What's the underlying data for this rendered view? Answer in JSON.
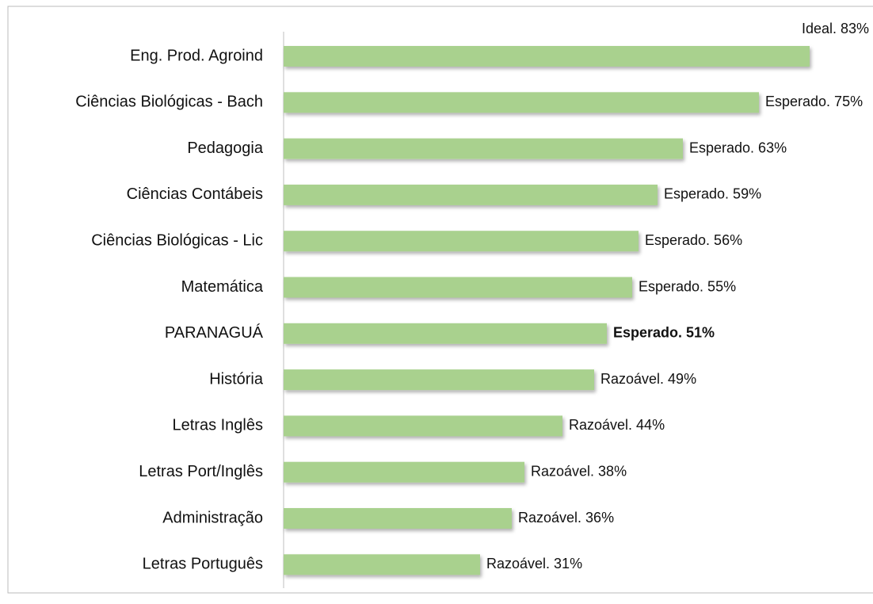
{
  "chart_data": {
    "type": "bar",
    "orientation": "horizontal",
    "categories": [
      "Eng. Prod. Agroind",
      "Ciências Biológicas - Bach",
      "Pedagogia",
      "Ciências Contábeis",
      "Ciências Biológicas - Lic",
      "Matemática",
      "PARANAGUÁ",
      "História",
      "Letras Inglês",
      "Letras Port/Inglês",
      "Administração",
      "Letras Português"
    ],
    "values": [
      83,
      75,
      63,
      59,
      56,
      55,
      51,
      49,
      44,
      38,
      36,
      31
    ],
    "value_labels": [
      "Ideal. 83%",
      "Esperado. 75%",
      "Esperado. 63%",
      "Esperado. 59%",
      "Esperado. 56%",
      "Esperado. 55%",
      "Esperado. 51%",
      "Razoável. 49%",
      "Razoável. 44%",
      "Razoável. 38%",
      "Razoável. 36%",
      "Razoável. 31%"
    ],
    "highlight_category": "PARANAGUÁ",
    "color": "#a9d18e",
    "xlim": [
      0,
      92
    ]
  }
}
